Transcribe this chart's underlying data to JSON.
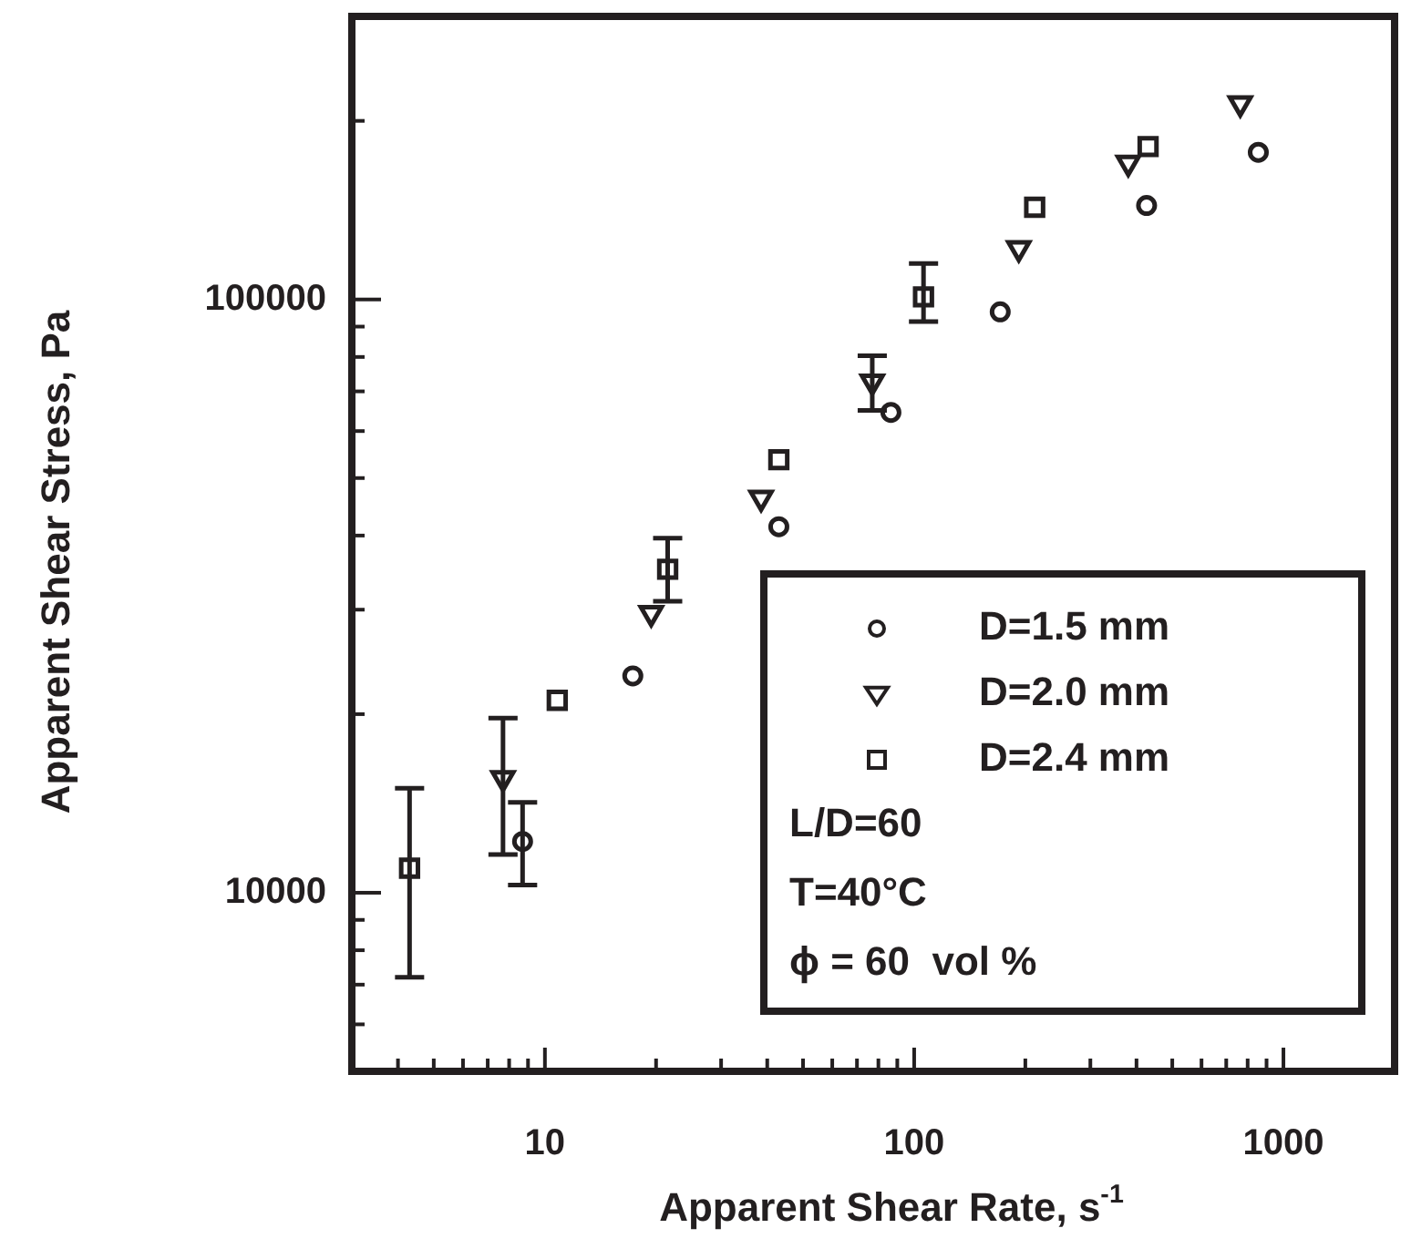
{
  "chart_data": {
    "type": "scatter",
    "xlabel": "Apparent Shear Rate, s$^{-1}$",
    "ylabel": "Apparent Shear Stress, Pa",
    "log": "xy",
    "xlim": [
      3,
      2000
    ],
    "ylim": [
      5000,
      300000
    ],
    "xticks": [
      {
        "value": 4,
        "label": null
      },
      {
        "value": 5,
        "label": null
      },
      {
        "value": 6,
        "label": null
      },
      {
        "value": 7,
        "label": null
      },
      {
        "value": 8,
        "label": null
      },
      {
        "value": 9,
        "label": null
      },
      10,
      {
        "value": 20,
        "label": null
      },
      {
        "value": 30,
        "label": null
      },
      {
        "value": 40,
        "label": null
      },
      {
        "value": 50,
        "label": null
      },
      {
        "value": 60,
        "label": null
      },
      {
        "value": 70,
        "label": null
      },
      {
        "value": 80,
        "label": null
      },
      {
        "value": 90,
        "label": null
      },
      100,
      {
        "value": 200,
        "label": null
      },
      {
        "value": 300,
        "label": null
      },
      {
        "value": 400,
        "label": null
      },
      {
        "value": 500,
        "label": null
      },
      {
        "value": 600,
        "label": null
      },
      {
        "value": 700,
        "label": null
      },
      {
        "value": 800,
        "label": null
      },
      {
        "value": 900,
        "label": null
      },
      1000
    ],
    "yticks": [
      {
        "value": 6000,
        "label": null
      },
      {
        "value": 7000,
        "label": null
      },
      {
        "value": 8000,
        "label": null
      },
      {
        "value": 9000,
        "label": null
      },
      10000,
      {
        "value": 20000,
        "label": null
      },
      {
        "value": 30000,
        "label": null
      },
      {
        "value": 40000,
        "label": null
      },
      {
        "value": 50000,
        "label": null
      },
      {
        "value": 60000,
        "label": null
      },
      {
        "value": 70000,
        "label": null
      },
      {
        "value": 80000,
        "label": null
      },
      {
        "value": 90000,
        "label": null
      },
      100000,
      {
        "value": 200000,
        "label": null
      }
    ],
    "grid": false,
    "legend": "bottom right",
    "annotations": [
      "L/D=60",
      "T=40°C",
      "ϕ = 60  vol %"
    ],
    "series": [
      {
        "name": "D=1.5 mm",
        "color": "#231f20",
        "marker": "circle",
        "x": [
          8.7,
          17.3,
          43,
          86.5,
          171,
          426,
          855
        ],
        "values": [
          12200,
          23200,
          41400,
          64500,
          95300,
          144000,
          177000
        ],
        "errors": [
          [
            10300,
            14200
          ],
          null,
          null,
          null,
          null,
          null,
          null
        ]
      },
      {
        "name": "D=2.0 mm",
        "color": "#231f20",
        "marker": "triangle",
        "x": [
          7.7,
          19.4,
          38.5,
          77,
          192,
          380,
          764
        ],
        "values": [
          15600,
          29600,
          46300,
          72700,
          122000,
          170000,
          214000
        ],
        "errors": [
          [
            11600,
            19700
          ],
          null,
          null,
          [
            65000,
            80400
          ],
          null,
          null,
          null
        ]
      },
      {
        "name": "D=2.4 mm",
        "color": "#231f20",
        "marker": "square",
        "x": [
          4.3,
          10.8,
          21.5,
          43,
          106,
          212,
          430
        ],
        "values": [
          11000,
          21100,
          35100,
          53700,
          101000,
          143000,
          181000
        ],
        "errors": [
          [
            7200,
            15000
          ],
          null,
          [
            31000,
            39600
          ],
          null,
          [
            91800,
            115000
          ],
          null,
          null
        ]
      }
    ]
  }
}
